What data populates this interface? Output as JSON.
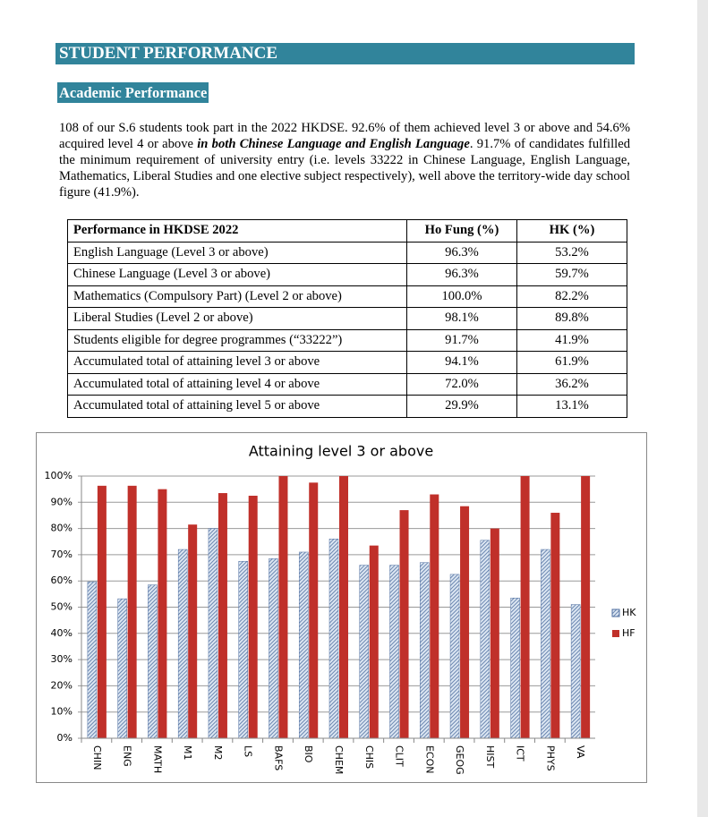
{
  "header": {
    "title": "STUDENT PERFORMANCE"
  },
  "section": {
    "title": "Academic Performance",
    "paragraph": [
      "108 of our S.6 students took part in the 2022 HKDSE. 92.6% of them achieved level 3 or above and 54.6% acquired level 4 or above ",
      "in both Chinese Language and English Language",
      ". 91.7% of candidates fulfilled the minimum requirement of university entry (i.e. levels 33222 in Chinese Language, English Language, Mathematics, Liberal Studies and one elective subject respectively), well above the territory-wide day school figure (41.9%)."
    ]
  },
  "table": {
    "header": [
      "Performance in HKDSE 2022",
      "Ho Fung (%)",
      "HK (%)"
    ],
    "rows": [
      [
        "English Language (Level 3 or above)",
        "96.3%",
        "53.2%"
      ],
      [
        "Chinese Language (Level 3 or above)",
        "96.3%",
        "59.7%"
      ],
      [
        "Mathematics (Compulsory Part) (Level 2 or above)",
        "100.0%",
        "82.2%"
      ],
      [
        "Liberal Studies (Level 2 or above)",
        "98.1%",
        "89.8%"
      ],
      [
        "Students eligible for degree programmes (“33222”)",
        "91.7%",
        "41.9%"
      ],
      [
        "Accumulated total of attaining level 3 or above",
        "94.1%",
        "61.9%"
      ],
      [
        "Accumulated total of attaining level 4 or above",
        "72.0%",
        "36.2%"
      ],
      [
        "Accumulated total of attaining level 5 or above",
        "29.9%",
        "13.1%"
      ]
    ]
  },
  "chart_data": {
    "type": "bar",
    "title": "Attaining level 3 or above",
    "categories": [
      "CHIN",
      "ENG",
      "MATH",
      "M1",
      "M2",
      "LS",
      "BAFS",
      "BIO",
      "CHEM",
      "CHIS",
      "CLIT",
      "ECON",
      "GEOG",
      "HIST",
      "ICT",
      "PHYS",
      "VA"
    ],
    "series": [
      {
        "name": "HK",
        "color": "#4f6fa0",
        "values": [
          59.7,
          53.2,
          58.5,
          72,
          80,
          67.5,
          68.5,
          71,
          76,
          66,
          66,
          67,
          62.5,
          75.5,
          53.5,
          72,
          51
        ]
      },
      {
        "name": "HF",
        "color": "#c0302a",
        "values": [
          96.3,
          96.3,
          95,
          81.5,
          93.5,
          92.5,
          100,
          97.5,
          100,
          73.5,
          87,
          93,
          88.5,
          80,
          100,
          86,
          100
        ]
      }
    ],
    "ylim": [
      0,
      100
    ],
    "yticks": [
      {
        "value": 0,
        "label": "0%"
      },
      {
        "value": 10,
        "label": "10%"
      },
      {
        "value": 20,
        "label": "20%"
      },
      {
        "value": 30,
        "label": "30%"
      },
      {
        "value": 40,
        "label": "40%"
      },
      {
        "value": 50,
        "label": "50%"
      },
      {
        "value": 60,
        "label": "60%"
      },
      {
        "value": 70,
        "label": "70%"
      },
      {
        "value": 80,
        "label": "80%"
      },
      {
        "value": 90,
        "label": "90%"
      },
      {
        "value": 100,
        "label": "100%"
      }
    ],
    "grid": true,
    "legend": "right"
  }
}
